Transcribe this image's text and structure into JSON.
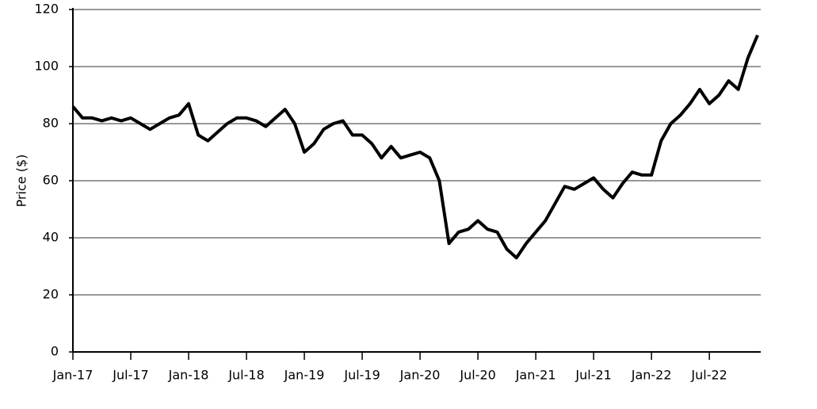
{
  "chart_data": {
    "type": "line",
    "y_label": "Price ($)",
    "x": [
      "2017-01",
      "2017-02",
      "2017-03",
      "2017-04",
      "2017-05",
      "2017-06",
      "2017-07",
      "2017-08",
      "2017-09",
      "2017-10",
      "2017-11",
      "2017-12",
      "2018-01",
      "2018-02",
      "2018-03",
      "2018-04",
      "2018-05",
      "2018-06",
      "2018-07",
      "2018-08",
      "2018-09",
      "2018-10",
      "2018-11",
      "2018-12",
      "2019-01",
      "2019-02",
      "2019-03",
      "2019-04",
      "2019-05",
      "2019-06",
      "2019-07",
      "2019-08",
      "2019-09",
      "2019-10",
      "2019-11",
      "2019-12",
      "2020-01",
      "2020-02",
      "2020-03",
      "2020-04",
      "2020-05",
      "2020-06",
      "2020-07",
      "2020-08",
      "2020-09",
      "2020-10",
      "2020-11",
      "2020-12",
      "2021-01",
      "2021-02",
      "2021-03",
      "2021-04",
      "2021-05",
      "2021-06",
      "2021-07",
      "2021-08",
      "2021-09",
      "2021-10",
      "2021-11",
      "2021-12",
      "2022-01",
      "2022-02",
      "2022-03",
      "2022-04",
      "2022-05",
      "2022-06",
      "2022-07",
      "2022-08",
      "2022-09",
      "2022-10",
      "2022-11",
      "2022-12"
    ],
    "series": [
      {
        "color": "#000000",
        "values": [
          86,
          82,
          82,
          81,
          82,
          81,
          82,
          80,
          78,
          80,
          82,
          83,
          87,
          76,
          74,
          77,
          80,
          82,
          82,
          81,
          79,
          82,
          85,
          80,
          70,
          73,
          78,
          80,
          81,
          76,
          76,
          73,
          68,
          72,
          68,
          69,
          70,
          68,
          60,
          38,
          42,
          43,
          46,
          43,
          42,
          36,
          33,
          38,
          42,
          46,
          52,
          58,
          57,
          59,
          61,
          57,
          54,
          59,
          63,
          62,
          62,
          74,
          80,
          83,
          87,
          92,
          87,
          90,
          95,
          92,
          103,
          111
        ]
      }
    ],
    "xlim": [
      "2017-01",
      "2022-12"
    ],
    "xticks": [
      {
        "value": "2017-01",
        "label": "Jan-17"
      },
      {
        "value": "2017-07",
        "label": "Jul-17"
      },
      {
        "value": "2018-01",
        "label": "Jan-18"
      },
      {
        "value": "2018-07",
        "label": "Jul-18"
      },
      {
        "value": "2019-01",
        "label": "Jan-19"
      },
      {
        "value": "2019-07",
        "label": "Jul-19"
      },
      {
        "value": "2020-01",
        "label": "Jan-20"
      },
      {
        "value": "2020-07",
        "label": "Jul-20"
      },
      {
        "value": "2021-01",
        "label": "Jan-21"
      },
      {
        "value": "2021-07",
        "label": "Jul-21"
      },
      {
        "value": "2022-01",
        "label": "Jan-22"
      },
      {
        "value": "2022-07",
        "label": "Jul-22"
      }
    ],
    "ylim": [
      0,
      120
    ],
    "yticks": [
      0,
      20,
      40,
      60,
      80,
      100,
      120
    ],
    "grid": true
  }
}
